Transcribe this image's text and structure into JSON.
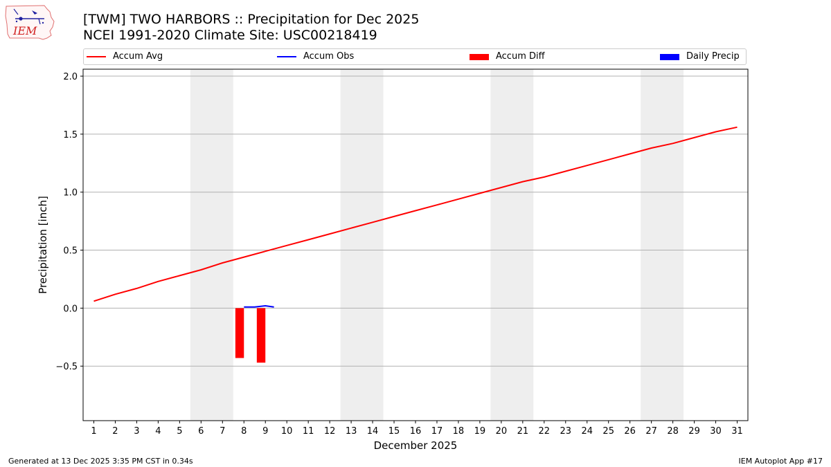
{
  "title_line1": "[TWM] TWO HARBORS :: Precipitation for Dec 2025",
  "title_line2": "NCEI 1991-2020 Climate Site: USC00218419",
  "logo_text": "IEM",
  "footer_left": "Generated at 13 Dec 2025 3:35 PM CST in 0.34s",
  "footer_right": "IEM Autoplot App #17",
  "legend": [
    {
      "label": "Accum Avg",
      "color": "#ff0000",
      "kind": "line"
    },
    {
      "label": "Accum Obs",
      "color": "#0000ff",
      "kind": "line"
    },
    {
      "label": "Accum Diff",
      "color": "#ff0000",
      "kind": "box"
    },
    {
      "label": "Daily Precip",
      "color": "#0000ff",
      "kind": "box"
    }
  ],
  "chart_data": {
    "type": "line",
    "xlabel": "December 2025",
    "ylabel": "Precipitation [inch]",
    "x": [
      1,
      2,
      3,
      4,
      5,
      6,
      7,
      8,
      9,
      10,
      11,
      12,
      13,
      14,
      15,
      16,
      17,
      18,
      19,
      20,
      21,
      22,
      23,
      24,
      25,
      26,
      27,
      28,
      29,
      30,
      31
    ],
    "xlim": [
      0.5,
      31.5
    ],
    "ylim": [
      -0.97,
      2.06
    ],
    "yticks": [
      -0.5,
      0.0,
      0.5,
      1.0,
      1.5,
      2.0
    ],
    "ytick_labels": [
      "−0.5",
      "0.0",
      "0.5",
      "1.0",
      "1.5",
      "2.0"
    ],
    "grid": true,
    "weekend_shading": [
      [
        6,
        7
      ],
      [
        13,
        14
      ],
      [
        20,
        21
      ],
      [
        27,
        28
      ]
    ],
    "series": [
      {
        "name": "Accum Avg",
        "type": "line",
        "color": "#ff0000",
        "x": [
          1,
          2,
          3,
          4,
          5,
          6,
          7,
          8,
          9,
          10,
          11,
          12,
          13,
          14,
          15,
          16,
          17,
          18,
          19,
          20,
          21,
          22,
          23,
          24,
          25,
          26,
          27,
          28,
          29,
          30,
          31
        ],
        "values": [
          0.06,
          0.12,
          0.17,
          0.23,
          0.28,
          0.33,
          0.39,
          0.44,
          0.49,
          0.54,
          0.59,
          0.64,
          0.69,
          0.74,
          0.79,
          0.84,
          0.89,
          0.94,
          0.99,
          1.04,
          1.09,
          1.13,
          1.18,
          1.23,
          1.28,
          1.33,
          1.38,
          1.42,
          1.47,
          1.52,
          1.56
        ]
      },
      {
        "name": "Accum Obs",
        "type": "line",
        "color": "#0000ff",
        "x": [
          8,
          8.5,
          9,
          9.4
        ],
        "values": [
          0.01,
          0.01,
          0.02,
          0.01
        ]
      },
      {
        "name": "Accum Diff",
        "type": "bar",
        "color": "#ff0000",
        "x": [
          7.8,
          8.8
        ],
        "values": [
          -0.43,
          -0.47
        ]
      },
      {
        "name": "Daily Precip",
        "type": "bar",
        "color": "#0000ff",
        "x": [],
        "values": []
      }
    ]
  }
}
